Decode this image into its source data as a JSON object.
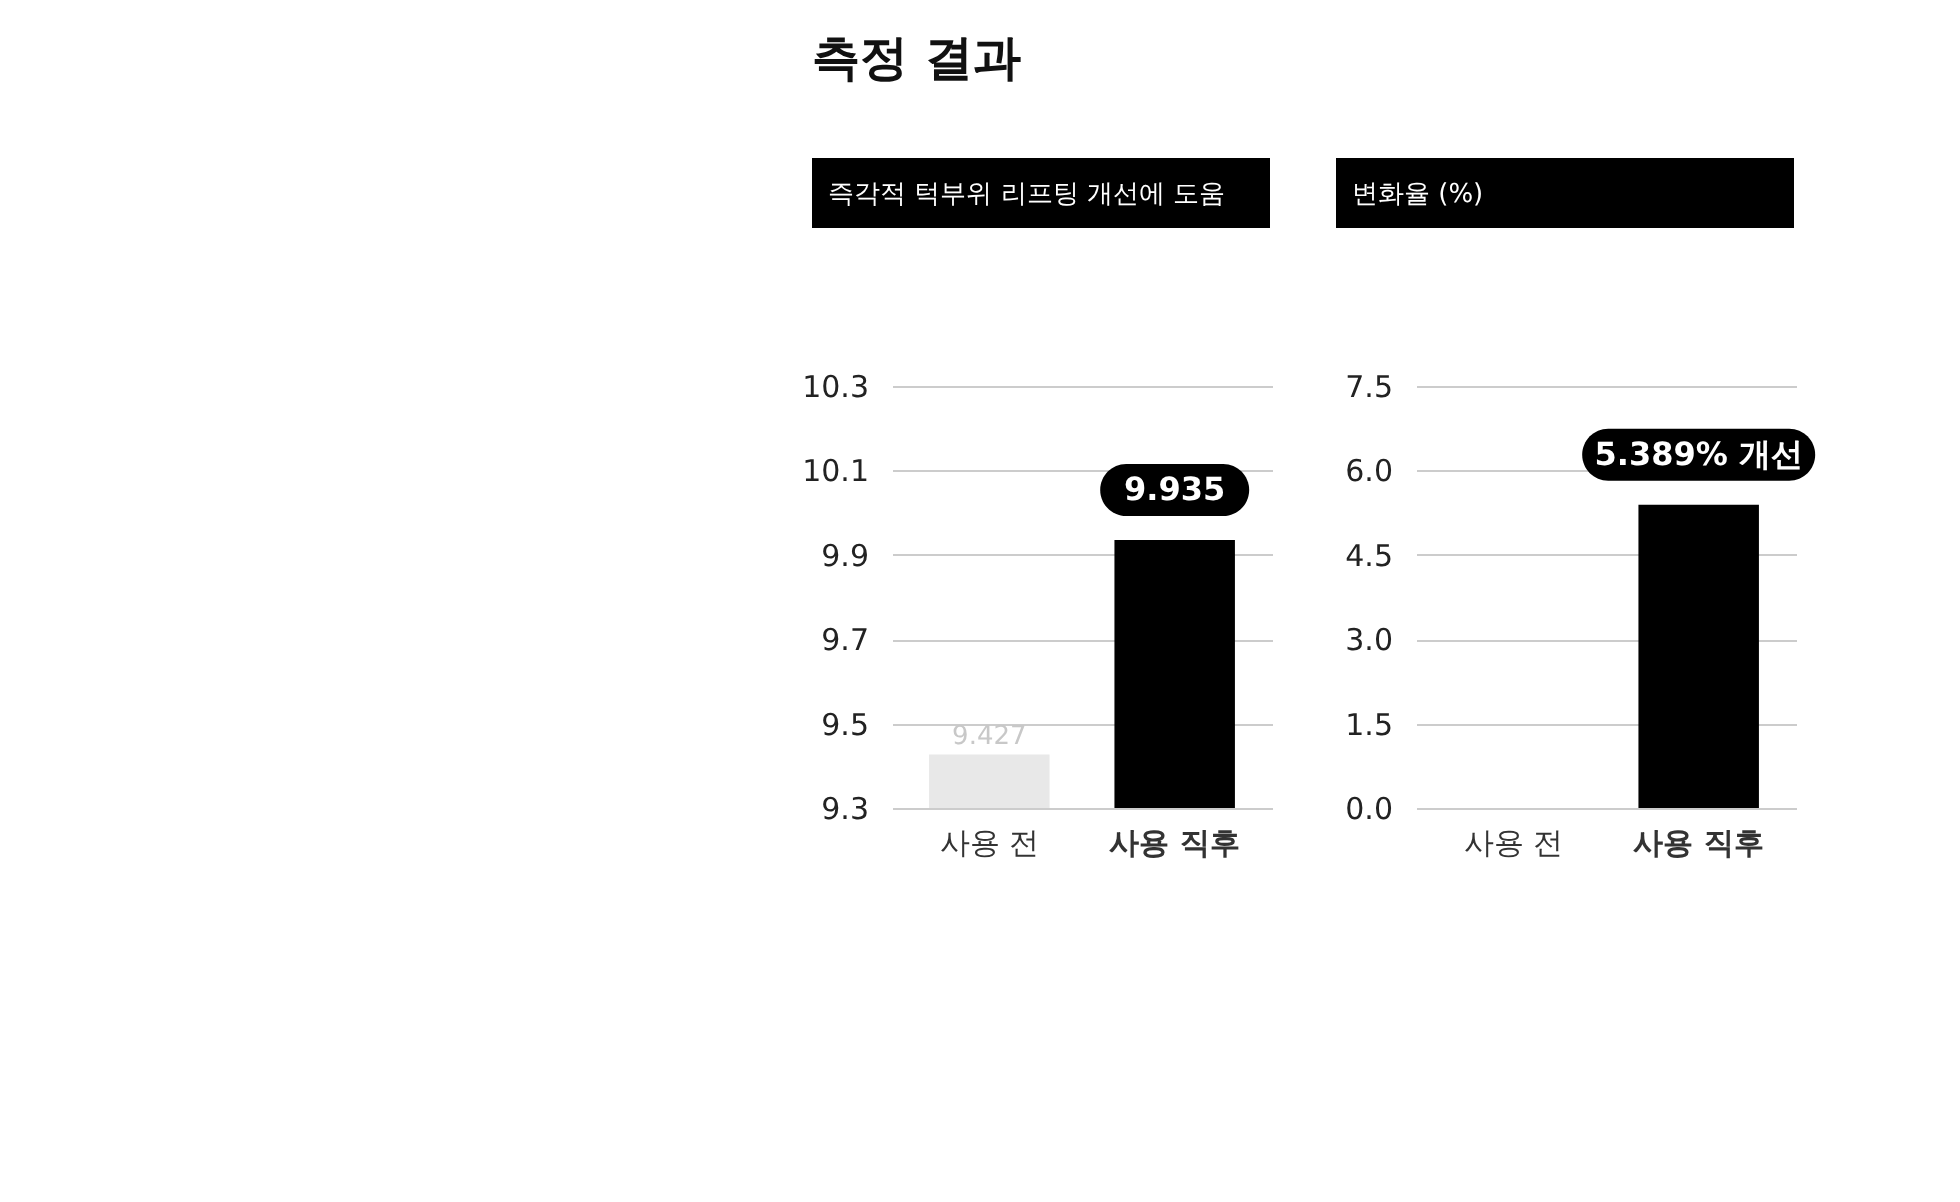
{
  "chart_data": [
    {
      "type": "bar",
      "title": "즉각적 턱부위 리프팅 개선에 도움",
      "annotations": [
        "측정 결과"
      ],
      "categories": [
        "사용 전",
        "사용 직후"
      ],
      "values": [
        9.427,
        9.935
      ],
      "colors": [
        "#e8e8e8",
        "#000000"
      ],
      "value_labels": [
        "9.427",
        "9.935"
      ],
      "ylim": [
        9.3,
        10.3
      ],
      "yticks": [
        9.3,
        9.5,
        9.7,
        9.9,
        10.1,
        10.3
      ],
      "grid": "y"
    },
    {
      "type": "bar",
      "title": "변화율 (%)",
      "categories": [
        "사용 전",
        "사용 직후"
      ],
      "values": [
        0,
        5.389
      ],
      "colors": [
        "#e8e8e8",
        "#000000"
      ],
      "value_labels": [
        null,
        "5.389% 개선"
      ],
      "ylim": [
        0,
        7.5
      ],
      "yticks": [
        {
          "value": 0,
          "label": "0.0"
        },
        {
          "value": 1.5,
          "label": "1.5"
        },
        {
          "value": 3,
          "label": "3.0"
        },
        {
          "value": 4.5,
          "label": "4.5"
        },
        {
          "value": 6,
          "label": "6.0"
        },
        {
          "value": 7.5,
          "label": "7.5"
        }
      ],
      "grid": "y"
    }
  ]
}
